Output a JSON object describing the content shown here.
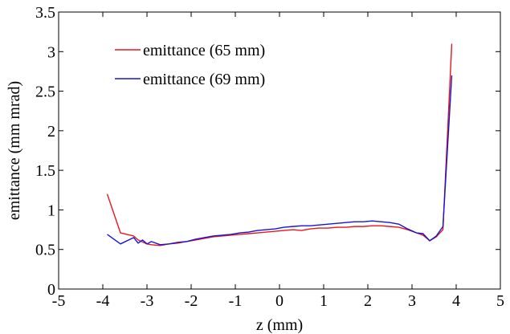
{
  "chart_data": {
    "type": "line",
    "title": "",
    "xlabel": "z (mm)",
    "ylabel": "emittance (mm mrad)",
    "xlim": [
      -5,
      5
    ],
    "ylim": [
      0,
      3.5
    ],
    "xticks": [
      -5,
      -4,
      -3,
      -2,
      -1,
      0,
      1,
      2,
      3,
      4,
      5
    ],
    "yticks": [
      0,
      0.5,
      1,
      1.5,
      2,
      2.5,
      3,
      3.5
    ],
    "xtick_labels": [
      "-5",
      "-4",
      "-3",
      "-2",
      "-1",
      "0",
      "1",
      "2",
      "3",
      "4",
      "5"
    ],
    "ytick_labels": [
      "0",
      "0.5",
      "1",
      "1.5",
      "2",
      "2.5",
      "3",
      "3.5"
    ],
    "grid": false,
    "legend_position": "top-left",
    "series": [
      {
        "name": "emittance (65 mm)",
        "color": "#e8161b",
        "x": [
          -3.9,
          -3.6,
          -3.3,
          -3.2,
          -3.0,
          -2.9,
          -2.7,
          -2.5,
          -2.3,
          -2.1,
          -1.9,
          -1.7,
          -1.5,
          -1.3,
          -1.1,
          -0.9,
          -0.7,
          -0.5,
          -0.3,
          -0.1,
          0.1,
          0.3,
          0.5,
          0.7,
          0.9,
          1.1,
          1.3,
          1.5,
          1.7,
          1.9,
          2.1,
          2.3,
          2.5,
          2.7,
          2.9,
          3.1,
          3.25,
          3.4,
          3.55,
          3.7,
          3.9
        ],
        "y": [
          1.2,
          0.71,
          0.67,
          0.62,
          0.57,
          0.56,
          0.55,
          0.57,
          0.58,
          0.6,
          0.62,
          0.64,
          0.66,
          0.67,
          0.68,
          0.69,
          0.7,
          0.71,
          0.72,
          0.73,
          0.74,
          0.75,
          0.74,
          0.76,
          0.77,
          0.77,
          0.78,
          0.78,
          0.79,
          0.79,
          0.8,
          0.8,
          0.79,
          0.78,
          0.75,
          0.71,
          0.68,
          0.61,
          0.66,
          0.75,
          3.1
        ]
      },
      {
        "name": "emittance (69 mm)",
        "color": "#1515d8",
        "x": [
          -3.9,
          -3.6,
          -3.3,
          -3.2,
          -3.1,
          -3.0,
          -2.9,
          -2.7,
          -2.5,
          -2.3,
          -2.1,
          -1.9,
          -1.7,
          -1.5,
          -1.3,
          -1.1,
          -0.9,
          -0.7,
          -0.5,
          -0.3,
          -0.1,
          0.1,
          0.3,
          0.5,
          0.7,
          0.9,
          1.1,
          1.3,
          1.5,
          1.7,
          1.9,
          2.1,
          2.3,
          2.5,
          2.7,
          2.9,
          3.1,
          3.25,
          3.4,
          3.55,
          3.7,
          3.9
        ],
        "y": [
          0.69,
          0.57,
          0.65,
          0.58,
          0.62,
          0.57,
          0.6,
          0.56,
          0.57,
          0.59,
          0.6,
          0.63,
          0.65,
          0.67,
          0.68,
          0.69,
          0.71,
          0.72,
          0.74,
          0.75,
          0.76,
          0.78,
          0.79,
          0.8,
          0.8,
          0.81,
          0.82,
          0.83,
          0.84,
          0.85,
          0.85,
          0.86,
          0.85,
          0.84,
          0.82,
          0.76,
          0.71,
          0.7,
          0.61,
          0.67,
          0.79,
          2.7
        ]
      }
    ]
  }
}
